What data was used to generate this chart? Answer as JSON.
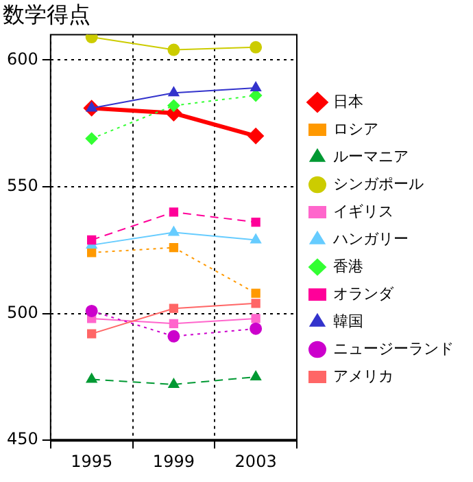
{
  "chart_data": {
    "type": "line",
    "title": "数学得点",
    "categories": [
      "1995",
      "1999",
      "2003"
    ],
    "ylim": [
      450,
      610
    ],
    "yticks": [
      450,
      500,
      550,
      600
    ],
    "grid": true,
    "legend": "right",
    "series": [
      {
        "name": "日本",
        "color": "#ff0000",
        "values": [
          581,
          579,
          570
        ],
        "marker": "diamond",
        "line_style": "solid"
      },
      {
        "name": "ロシア",
        "color": "#ff9900",
        "values": [
          524,
          526,
          508
        ],
        "marker": "square",
        "line_style": "dotted"
      },
      {
        "name": "ルーマニア",
        "color": "#009933",
        "values": [
          474,
          472,
          475
        ],
        "marker": "triangle",
        "line_style": "dashed"
      },
      {
        "name": "シンガポール",
        "color": "#cccc00",
        "values": [
          609,
          604,
          605
        ],
        "marker": "circle",
        "line_style": "solid"
      },
      {
        "name": "イギリス",
        "color": "#ff66cc",
        "values": [
          498,
          496,
          498
        ],
        "marker": "square",
        "line_style": "solid"
      },
      {
        "name": "ハンガリー",
        "color": "#66ccff",
        "values": [
          527,
          532,
          529
        ],
        "marker": "triangle",
        "line_style": "solid"
      },
      {
        "name": "香港",
        "color": "#33ff33",
        "values": [
          569,
          582,
          586
        ],
        "marker": "diamond",
        "line_style": "dotted"
      },
      {
        "name": "オランダ",
        "color": "#ff0099",
        "values": [
          529,
          540,
          536
        ],
        "marker": "square",
        "line_style": "dashed"
      },
      {
        "name": "韓国",
        "color": "#3333cc",
        "values": [
          581,
          587,
          589
        ],
        "marker": "triangle",
        "line_style": "solid"
      },
      {
        "name": "ニュージーランド",
        "color": "#cc00cc",
        "values": [
          501,
          491,
          494
        ],
        "marker": "circle",
        "line_style": "dotted"
      },
      {
        "name": "アメリカ",
        "color": "#ff6666",
        "values": [
          492,
          502,
          504
        ],
        "marker": "square",
        "line_style": "solid"
      }
    ]
  }
}
